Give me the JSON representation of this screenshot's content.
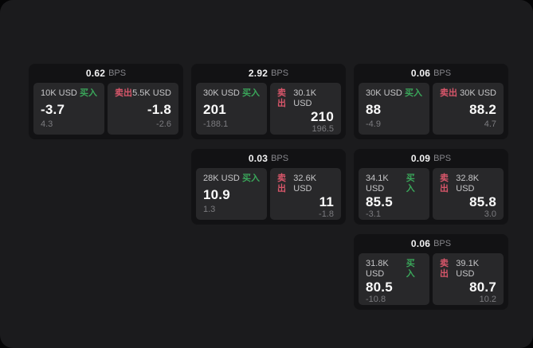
{
  "page": {
    "background": "#1b1b1d",
    "outer_background": "#050506"
  },
  "labels": {
    "buy": "买入",
    "sell": "卖出",
    "bps_unit": "BPS"
  },
  "colors": {
    "buy": "#3aa65a",
    "sell": "#d8566a",
    "card_bg": "#121214",
    "panel_bg": "#28282a"
  },
  "cards": [
    {
      "grid": {
        "row": 1,
        "col": 1
      },
      "bps": "0.62",
      "buy": {
        "amount": "10K USD",
        "price": "-3.7",
        "delta": "4.3"
      },
      "sell": {
        "amount": "5.5K USD",
        "price": "-1.8",
        "delta": "-2.6"
      }
    },
    {
      "grid": {
        "row": 1,
        "col": 2
      },
      "bps": "2.92",
      "buy": {
        "amount": "30K USD",
        "price": "201",
        "delta": "-188.1"
      },
      "sell": {
        "amount": "30.1K USD",
        "price": "210",
        "delta": "196.5"
      }
    },
    {
      "grid": {
        "row": 1,
        "col": 3
      },
      "bps": "0.06",
      "buy": {
        "amount": "30K USD",
        "price": "88",
        "delta": "-4.9"
      },
      "sell": {
        "amount": "30K USD",
        "price": "88.2",
        "delta": "4.7"
      }
    },
    {
      "grid": {
        "row": 2,
        "col": 2
      },
      "bps": "0.03",
      "buy": {
        "amount": "28K USD",
        "price": "10.9",
        "delta": "1.3"
      },
      "sell": {
        "amount": "32.6K USD",
        "price": "11",
        "delta": "-1.8"
      }
    },
    {
      "grid": {
        "row": 2,
        "col": 3
      },
      "bps": "0.09",
      "buy": {
        "amount": "34.1K USD",
        "price": "85.5",
        "delta": "-3.1"
      },
      "sell": {
        "amount": "32.8K USD",
        "price": "85.8",
        "delta": "3.0"
      }
    },
    {
      "grid": {
        "row": 3,
        "col": 3
      },
      "bps": "0.06",
      "buy": {
        "amount": "31.8K USD",
        "price": "80.5",
        "delta": "-10.8"
      },
      "sell": {
        "amount": "39.1K USD",
        "price": "80.7",
        "delta": "10.2"
      }
    }
  ]
}
